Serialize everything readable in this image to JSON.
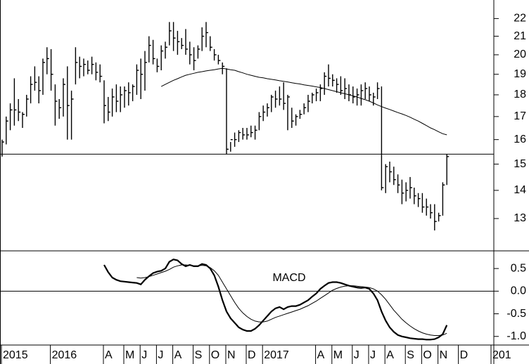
{
  "chart_data": [
    {
      "type": "ohlc",
      "log": true,
      "color": "#000000",
      "ylim": [
        11.94,
        23.1
      ],
      "yticks": [
        13,
        14,
        15,
        16,
        17,
        18,
        19,
        20,
        21,
        22
      ],
      "hline": 15.4,
      "high": [
        16.0,
        17.0,
        17.6,
        18.8,
        17.8,
        17.2,
        18.0,
        18.9,
        19.4,
        18.9,
        19.8,
        20.4,
        20.3,
        18.5,
        17.8,
        18.8,
        19.4,
        18.2,
        20.4,
        19.9,
        19.8,
        19.7,
        19.9,
        19.6,
        19.5,
        18.7,
        17.9,
        18.3,
        18.5,
        18.4,
        18.4,
        18.6,
        18.5,
        19.5,
        19.8,
        20.2,
        21.0,
        20.8,
        19.8,
        20.5,
        20.7,
        21.8,
        21.8,
        21.3,
        20.9,
        21.4,
        20.7,
        20.4,
        20.5,
        21.5,
        21.8,
        21.0,
        20.3,
        20.0,
        19.6,
        19.3,
        15.9,
        16.3,
        16.4,
        16.5,
        16.5,
        16.6,
        16.6,
        17.2,
        17.5,
        17.6,
        18.0,
        18.2,
        18.4,
        18.6,
        18.0,
        17.4,
        17.1,
        17.3,
        17.6,
        18.0,
        18.1,
        18.3,
        18.5,
        19.1,
        19.5,
        19.0,
        18.8,
        18.9,
        18.8,
        18.5,
        18.4,
        18.3,
        18.5,
        18.6,
        18.4,
        18.1,
        18.6,
        18.4,
        15.0,
        15.1,
        14.9,
        14.6,
        14.4,
        14.3,
        14.5,
        14.1,
        13.9,
        13.9,
        13.7,
        13.5,
        13.5,
        13.2,
        14.3,
        15.4,
        null,
        null,
        null,
        null,
        null,
        null,
        null,
        null,
        null,
        null,
        null
      ],
      "low": [
        15.3,
        15.8,
        16.4,
        16.6,
        16.8,
        16.5,
        17.0,
        17.6,
        18.2,
        17.6,
        18.0,
        19.0,
        18.2,
        16.6,
        16.9,
        17.0,
        16.0,
        16.0,
        18.5,
        18.8,
        18.9,
        19.0,
        19.0,
        18.7,
        18.6,
        16.7,
        16.8,
        17.0,
        17.2,
        17.2,
        17.4,
        17.5,
        17.7,
        18.0,
        17.8,
        18.2,
        19.6,
        19.5,
        19.1,
        19.2,
        19.8,
        20.5,
        20.2,
        20.0,
        20.3,
        20.0,
        19.5,
        19.2,
        19.8,
        20.2,
        20.4,
        20.2,
        19.7,
        19.5,
        19.0,
        15.4,
        15.5,
        15.7,
        15.9,
        16.0,
        16.0,
        16.1,
        16.0,
        16.4,
        16.8,
        17.0,
        17.2,
        17.4,
        17.5,
        17.3,
        16.4,
        16.5,
        16.6,
        16.9,
        17.1,
        17.2,
        17.6,
        17.7,
        17.7,
        18.0,
        18.4,
        18.4,
        18.1,
        18.0,
        17.8,
        17.7,
        17.6,
        17.5,
        17.5,
        17.8,
        17.7,
        17.5,
        17.8,
        14.0,
        13.9,
        14.3,
        14.2,
        13.9,
        13.5,
        13.6,
        13.7,
        13.5,
        13.4,
        13.2,
        13.1,
        13.0,
        12.6,
        12.9,
        13.1,
        14.2,
        null,
        null,
        null,
        null,
        null,
        null,
        null,
        null,
        null,
        null,
        null
      ],
      "close": [
        15.9,
        16.8,
        17.3,
        17.3,
        17.2,
        17.1,
        17.8,
        18.5,
        18.6,
        18.2,
        19.6,
        19.8,
        19.0,
        17.7,
        17.4,
        18.5,
        17.5,
        17.8,
        19.6,
        19.4,
        19.5,
        19.2,
        19.5,
        19.1,
        18.9,
        17.5,
        17.2,
        17.9,
        17.7,
        18.0,
        18.2,
        18.1,
        18.4,
        19.2,
        19.0,
        19.6,
        20.5,
        19.8,
        19.4,
        20.2,
        20.4,
        21.3,
        20.9,
        20.7,
        20.5,
        20.3,
        20.0,
        19.7,
        20.3,
        21.0,
        21.2,
        20.4,
        20.0,
        19.7,
        19.4,
        15.6,
        16.0,
        16.0,
        16.3,
        16.2,
        16.2,
        16.3,
        16.4,
        17.0,
        17.2,
        17.4,
        17.9,
        17.8,
        17.8,
        17.6,
        17.9,
        16.8,
        17.0,
        17.1,
        17.4,
        17.7,
        18.0,
        18.1,
        18.3,
        18.9,
        18.8,
        18.7,
        18.5,
        18.2,
        18.3,
        18.0,
        17.9,
        18.0,
        18.2,
        18.3,
        18.0,
        17.9,
        18.3,
        14.1,
        14.9,
        14.7,
        14.4,
        14.2,
        13.9,
        14.0,
        14.1,
        13.8,
        13.7,
        13.4,
        13.4,
        13.2,
        12.9,
        13.1,
        14.2,
        15.3,
        null,
        null,
        null,
        null,
        null,
        null,
        null,
        null,
        null,
        null,
        null
      ],
      "ma": [
        null,
        null,
        null,
        null,
        null,
        null,
        null,
        null,
        null,
        null,
        null,
        null,
        null,
        null,
        null,
        null,
        null,
        null,
        null,
        null,
        null,
        null,
        null,
        null,
        null,
        null,
        null,
        null,
        null,
        null,
        null,
        null,
        null,
        null,
        null,
        null,
        null,
        null,
        null,
        18.4,
        18.5,
        18.6,
        18.7,
        18.78,
        18.87,
        18.95,
        19.0,
        19.05,
        19.1,
        19.13,
        19.17,
        19.2,
        19.23,
        19.27,
        19.3,
        19.27,
        19.23,
        19.2,
        19.13,
        19.07,
        19.0,
        18.95,
        18.9,
        18.85,
        18.82,
        18.78,
        18.75,
        18.72,
        18.68,
        18.65,
        18.62,
        18.58,
        18.55,
        18.52,
        18.48,
        18.45,
        18.42,
        18.38,
        18.35,
        18.3,
        18.25,
        18.2,
        18.15,
        18.1,
        18.05,
        18.0,
        17.95,
        17.9,
        17.83,
        17.77,
        17.7,
        17.62,
        17.53,
        17.45,
        17.38,
        17.32,
        17.25,
        17.18,
        17.12,
        17.05,
        16.97,
        16.88,
        16.8,
        16.7,
        16.6,
        16.5,
        16.42,
        16.33,
        16.25,
        16.2,
        null,
        null,
        null,
        null,
        null,
        null,
        null,
        null,
        null,
        null,
        null
      ]
    },
    {
      "type": "line",
      "color": "#000000",
      "annotation": "MACD",
      "ylim": [
        -1.19,
        0.89
      ],
      "yticks": [
        {
          "value": -1,
          "label": "-1.0"
        },
        -0.5,
        {
          "value": 0,
          "label": "0.0"
        },
        0.5
      ],
      "hline": 0,
      "categories": [
        "2015",
        null,
        null,
        null,
        null,
        null,
        null,
        null,
        null,
        null,
        null,
        null,
        "2016",
        null,
        null,
        null,
        null,
        null,
        null,
        null,
        null,
        null,
        null,
        null,
        null,
        "A",
        null,
        null,
        null,
        null,
        "M",
        null,
        null,
        null,
        "J",
        null,
        null,
        null,
        "J",
        null,
        null,
        null,
        "A",
        null,
        null,
        null,
        null,
        "S",
        null,
        null,
        null,
        "O",
        null,
        null,
        null,
        "N",
        null,
        null,
        null,
        null,
        "D",
        null,
        null,
        null,
        "2017",
        null,
        null,
        null,
        null,
        null,
        null,
        null,
        null,
        null,
        null,
        null,
        null,
        "A",
        null,
        null,
        null,
        "M",
        null,
        null,
        null,
        null,
        "J",
        null,
        null,
        null,
        "J",
        null,
        null,
        null,
        "A",
        null,
        null,
        null,
        null,
        "S",
        null,
        null,
        null,
        "O",
        null,
        null,
        null,
        "N",
        null,
        null,
        null,
        null,
        "D",
        null,
        null,
        null,
        null,
        null,
        null,
        null,
        "201"
      ],
      "series": [
        {
          "values": [
            null,
            null,
            null,
            null,
            null,
            null,
            null,
            null,
            null,
            null,
            null,
            null,
            null,
            null,
            null,
            null,
            null,
            null,
            null,
            null,
            null,
            null,
            null,
            null,
            null,
            0.58,
            0.42,
            0.3,
            0.25,
            0.22,
            0.21,
            0.2,
            0.19,
            0.18,
            0.15,
            0.25,
            0.33,
            0.4,
            0.43,
            0.45,
            0.5,
            0.65,
            0.7,
            0.68,
            0.6,
            0.55,
            0.58,
            0.55,
            0.55,
            0.6,
            0.58,
            0.5,
            0.35,
            0.1,
            -0.2,
            -0.45,
            -0.6,
            -0.7,
            -0.8,
            -0.85,
            -0.88,
            -0.88,
            -0.83,
            -0.75,
            -0.65,
            -0.55,
            -0.45,
            -0.38,
            -0.35,
            -0.4,
            -0.35,
            -0.33,
            -0.33,
            -0.3,
            -0.25,
            -0.2,
            -0.12,
            -0.05,
            0.05,
            0.12,
            0.18,
            0.2,
            0.2,
            0.18,
            0.15,
            0.12,
            0.1,
            0.08,
            0.07,
            0.08,
            0.05,
            -0.05,
            -0.2,
            -0.45,
            -0.65,
            -0.8,
            -0.9,
            -0.97,
            -1.0,
            -1.02,
            -1.04,
            -1.05,
            -1.06,
            -1.06,
            -1.07,
            -1.07,
            -1.06,
            -1.02,
            -0.95,
            -0.75,
            null,
            null,
            null,
            null,
            null,
            null,
            null,
            null,
            null,
            null,
            null
          ]
        },
        {
          "values": [
            null,
            null,
            null,
            null,
            null,
            null,
            null,
            null,
            null,
            null,
            null,
            null,
            null,
            null,
            null,
            null,
            null,
            null,
            null,
            null,
            null,
            null,
            null,
            null,
            null,
            null,
            null,
            null,
            null,
            null,
            null,
            null,
            null,
            0.3,
            0.29,
            0.3,
            0.32,
            0.35,
            0.38,
            0.41,
            0.44,
            0.48,
            0.53,
            0.56,
            0.58,
            0.58,
            0.57,
            0.56,
            0.56,
            0.57,
            0.56,
            0.52,
            0.45,
            0.35,
            0.2,
            0.05,
            -0.1,
            -0.25,
            -0.38,
            -0.48,
            -0.56,
            -0.62,
            -0.66,
            -0.68,
            -0.68,
            -0.66,
            -0.62,
            -0.58,
            -0.55,
            -0.52,
            -0.49,
            -0.46,
            -0.43,
            -0.4,
            -0.36,
            -0.32,
            -0.27,
            -0.22,
            -0.16,
            -0.1,
            -0.04,
            0.02,
            0.06,
            0.09,
            0.11,
            0.12,
            0.12,
            0.11,
            0.1,
            0.09,
            0.08,
            0.05,
            0.0,
            -0.08,
            -0.18,
            -0.3,
            -0.42,
            -0.52,
            -0.62,
            -0.7,
            -0.77,
            -0.83,
            -0.88,
            -0.92,
            -0.95,
            -0.97,
            -0.98,
            -0.98,
            -0.97,
            -0.93,
            null,
            null,
            null,
            null,
            null,
            null,
            null,
            null,
            null,
            null,
            null
          ]
        }
      ]
    }
  ]
}
